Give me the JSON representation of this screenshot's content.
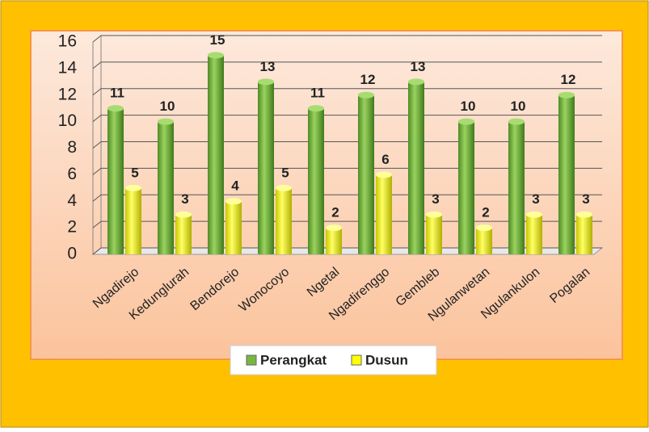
{
  "chart_data": {
    "type": "bar",
    "categories": [
      "Ngadirejo",
      "Kedunglurah",
      "Bendorejo",
      "Wonocoyo",
      "Ngetal",
      "Ngadirenggo",
      "Gembleb",
      "Ngulanwetan",
      "Ngulankulon",
      "Pogalan"
    ],
    "series": [
      {
        "name": "Perangkat",
        "color": "#77b843",
        "values": [
          11,
          10,
          15,
          13,
          11,
          12,
          13,
          10,
          10,
          12
        ]
      },
      {
        "name": "Dusun",
        "color": "#ffff00",
        "values": [
          5,
          3,
          4,
          5,
          2,
          6,
          3,
          2,
          3,
          3
        ]
      }
    ],
    "ylim": [
      0,
      16
    ],
    "yticks": [
      0,
      2,
      4,
      6,
      8,
      10,
      12,
      14,
      16
    ],
    "grid": true,
    "legend": "bottom"
  }
}
